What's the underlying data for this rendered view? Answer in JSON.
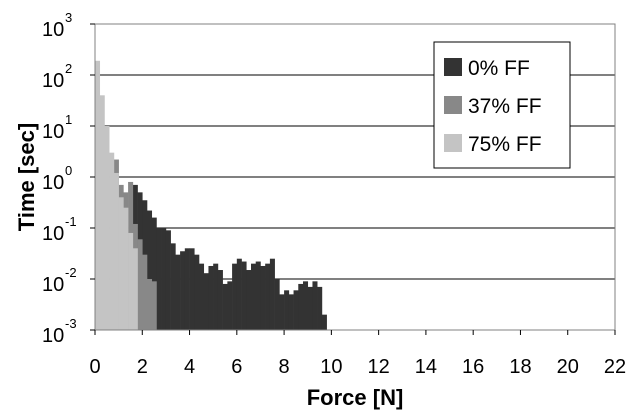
{
  "chart_data": {
    "type": "bar",
    "xlabel": "Force [N]",
    "ylabel": "Time [sec]",
    "xlim": [
      0,
      22
    ],
    "x_ticks": [
      "0",
      "2",
      "4",
      "6",
      "8",
      "10",
      "12",
      "14",
      "16",
      "18",
      "20",
      "22"
    ],
    "y_scale": "log",
    "ylim": [
      0.001,
      1000
    ],
    "y_ticks": [
      {
        "base": "10",
        "exp": "3"
      },
      {
        "base": "10",
        "exp": "2"
      },
      {
        "base": "10",
        "exp": "1"
      },
      {
        "base": "10",
        "exp": "0"
      },
      {
        "base": "10",
        "exp": "-1"
      },
      {
        "base": "10",
        "exp": "-2"
      },
      {
        "base": "10",
        "exp": "-3"
      }
    ],
    "grid": "horizontal",
    "legend_position": "top-right",
    "bin_width": 0.2,
    "series": [
      {
        "name": "0% FF",
        "color": "#333333",
        "bins": [
          [
            1.6,
            0.7
          ],
          [
            1.8,
            0.5
          ],
          [
            2.0,
            0.35
          ],
          [
            2.2,
            0.22
          ],
          [
            2.4,
            0.16
          ],
          [
            2.6,
            0.1
          ],
          [
            2.8,
            0.1
          ],
          [
            3.0,
            0.09
          ],
          [
            3.2,
            0.05
          ],
          [
            3.4,
            0.03
          ],
          [
            3.6,
            0.035
          ],
          [
            3.8,
            0.04
          ],
          [
            4.0,
            0.04
          ],
          [
            4.2,
            0.03
          ],
          [
            4.4,
            0.02
          ],
          [
            4.6,
            0.013
          ],
          [
            4.8,
            0.018
          ],
          [
            5.0,
            0.02
          ],
          [
            5.2,
            0.015
          ],
          [
            5.4,
            0.008
          ],
          [
            5.6,
            0.009
          ],
          [
            5.8,
            0.02
          ],
          [
            6.0,
            0.025
          ],
          [
            6.2,
            0.022
          ],
          [
            6.4,
            0.015
          ],
          [
            6.6,
            0.02
          ],
          [
            6.8,
            0.022
          ],
          [
            7.0,
            0.018
          ],
          [
            7.2,
            0.02
          ],
          [
            7.4,
            0.025
          ],
          [
            7.6,
            0.01
          ],
          [
            7.8,
            0.005
          ],
          [
            8.0,
            0.006
          ],
          [
            8.2,
            0.005
          ],
          [
            8.4,
            0.006
          ],
          [
            8.6,
            0.008
          ],
          [
            8.8,
            0.009
          ],
          [
            9.0,
            0.007
          ],
          [
            9.2,
            0.009
          ],
          [
            9.4,
            0.007
          ],
          [
            9.6,
            0.002
          ]
        ]
      },
      {
        "name": "37% FF",
        "color": "#888888",
        "bins": [
          [
            0.8,
            2.2
          ],
          [
            1.0,
            0.7
          ],
          [
            1.2,
            0.5
          ],
          [
            1.4,
            0.8
          ],
          [
            1.6,
            0.12
          ],
          [
            1.8,
            0.06
          ],
          [
            2.0,
            0.03
          ],
          [
            2.2,
            0.01
          ],
          [
            2.4,
            0.009
          ]
        ]
      },
      {
        "name": "75% FF",
        "color": "#c4c4c4",
        "bins": [
          [
            0.0,
            190
          ],
          [
            0.2,
            40
          ],
          [
            0.4,
            10
          ],
          [
            0.6,
            3
          ],
          [
            0.8,
            1.2
          ],
          [
            1.0,
            0.4
          ],
          [
            1.2,
            0.25
          ],
          [
            1.4,
            0.08
          ],
          [
            1.6,
            0.04
          ]
        ]
      }
    ]
  }
}
